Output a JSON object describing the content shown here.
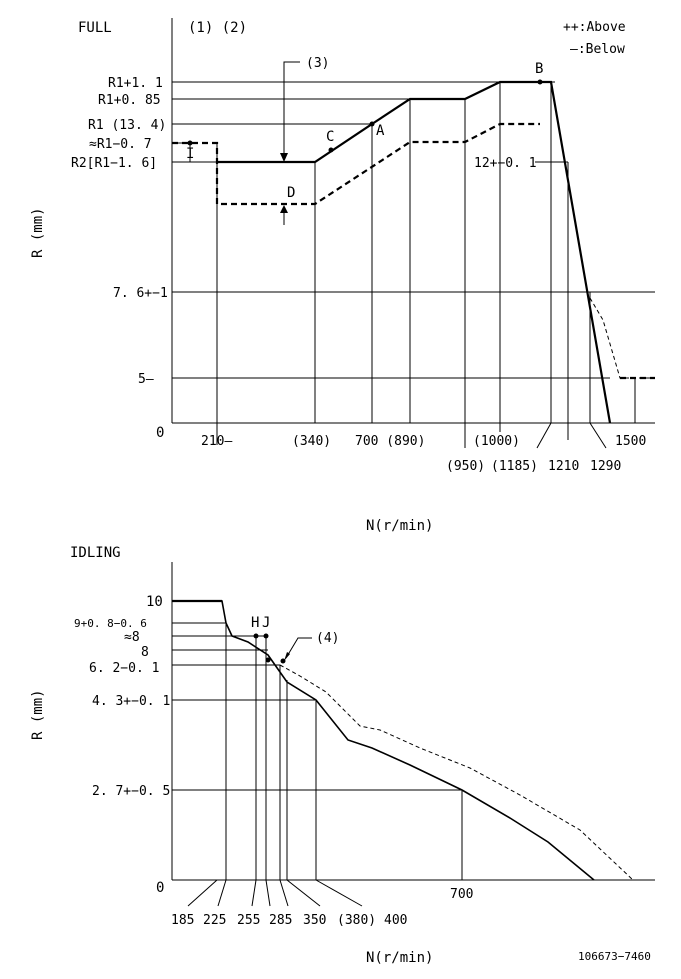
{
  "full": {
    "title": "FULL",
    "top_markers": "(1) (2)",
    "legend_above": "++:Above",
    "legend_below": "—:Below",
    "ylabel": "R (mm)",
    "xlabel": "N(r/min)",
    "y_labels": {
      "r1_plus_1_1": "R1+1. 1",
      "r1_plus_0_85": "R1+0. 85",
      "r1": "R1 (13. 4)",
      "r1_minus_0_7": "≈R1−0. 7",
      "r2": "R2[R1−1. 6]",
      "r_7_6": "7. 6+−1",
      "r_5": "5—",
      "zero": "0"
    },
    "x_labels": {
      "n210": "210—",
      "n340": "(340)",
      "n700_890": "700 (890)",
      "n1000": "(1000)",
      "n1500": "1500",
      "n950": "(950)",
      "n1185": "(1185)",
      "n1210": "1210",
      "n1290": "1290"
    },
    "points": {
      "A": "A",
      "B": "B",
      "C": "C",
      "D": "D",
      "I": "I"
    },
    "marker3": "(3)",
    "rack_12": "12+−0. 1"
  },
  "idling": {
    "title": "IDLING",
    "ylabel": "R (mm)",
    "xlabel": "N(r/min)",
    "y_labels": {
      "r10": "10",
      "r9": "9+0. 8−0. 6",
      "r8_approx": "≈8",
      "r8": "8",
      "r6_2": "6. 2−0. 1",
      "r4_3": "4. 3+−0. 1",
      "r2_7": "2. 7+−0. 5",
      "zero": "0"
    },
    "x_labels": {
      "n185": "185",
      "n225": "225",
      "n255": "255",
      "n285": "285",
      "n350": "350",
      "n380": "(380)",
      "n400": "400",
      "n700": "700"
    },
    "points": {
      "H": "H",
      "J": "J"
    },
    "marker4": "(4)"
  },
  "footer_code": "106673−7460"
}
